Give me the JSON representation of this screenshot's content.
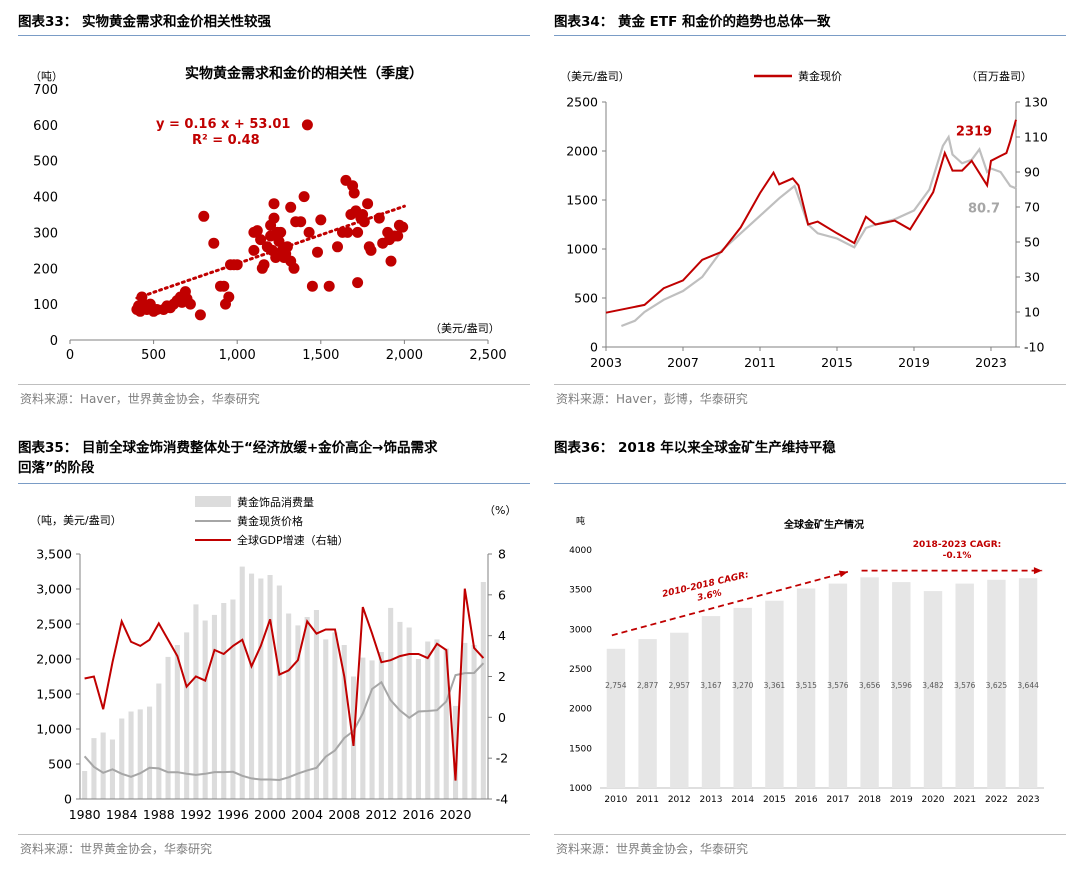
{
  "colors": {
    "red": "#c00000",
    "grey": "#bfbfbf",
    "bar": "#dcdcdc",
    "bar2": "#e6e6e6",
    "rule": "#7a9cc6"
  },
  "chart_data": [
    {
      "type": "scatter",
      "panel_title": "图表33： 实物黄金需求和金价相关性较强",
      "title": "实物黄金需求和金价的相关性（季度）",
      "ylabel": "（吨）",
      "xlabel": "（美元/盎司）",
      "equation": "y = 0.16 x + 53.01",
      "r2": "R² = 0.48",
      "xlim": [
        0,
        2500
      ],
      "ylim": [
        0,
        700
      ],
      "xticks": [
        0,
        500,
        1000,
        1500,
        2000,
        2500
      ],
      "xtick_labels": [
        "0",
        "500",
        "1,000",
        "1,500",
        "2,000",
        "2,500"
      ],
      "yticks": [
        0,
        100,
        200,
        300,
        400,
        500,
        600,
        700
      ],
      "trend": {
        "slope": 0.16,
        "intercept": 53.01,
        "x_from": 400,
        "x_to": 2000
      },
      "points": [
        [
          400,
          85
        ],
        [
          410,
          95
        ],
        [
          420,
          80
        ],
        [
          430,
          120
        ],
        [
          440,
          100
        ],
        [
          450,
          90
        ],
        [
          460,
          85
        ],
        [
          480,
          100
        ],
        [
          500,
          80
        ],
        [
          520,
          85
        ],
        [
          560,
          85
        ],
        [
          580,
          95
        ],
        [
          600,
          90
        ],
        [
          620,
          100
        ],
        [
          640,
          110
        ],
        [
          660,
          120
        ],
        [
          670,
          105
        ],
        [
          690,
          135
        ],
        [
          700,
          115
        ],
        [
          720,
          100
        ],
        [
          780,
          70
        ],
        [
          800,
          345
        ],
        [
          860,
          270
        ],
        [
          900,
          150
        ],
        [
          920,
          150
        ],
        [
          930,
          100
        ],
        [
          950,
          120
        ],
        [
          960,
          210
        ],
        [
          980,
          210
        ],
        [
          1000,
          210
        ],
        [
          1100,
          250
        ],
        [
          1100,
          300
        ],
        [
          1120,
          305
        ],
        [
          1140,
          280
        ],
        [
          1150,
          200
        ],
        [
          1160,
          210
        ],
        [
          1180,
          260
        ],
        [
          1200,
          320
        ],
        [
          1200,
          290
        ],
        [
          1210,
          250
        ],
        [
          1220,
          340
        ],
        [
          1220,
          380
        ],
        [
          1230,
          230
        ],
        [
          1240,
          300
        ],
        [
          1250,
          275
        ],
        [
          1260,
          300
        ],
        [
          1270,
          250
        ],
        [
          1280,
          230
        ],
        [
          1290,
          240
        ],
        [
          1300,
          260
        ],
        [
          1320,
          220
        ],
        [
          1320,
          370
        ],
        [
          1340,
          200
        ],
        [
          1350,
          330
        ],
        [
          1380,
          330
        ],
        [
          1400,
          400
        ],
        [
          1420,
          600
        ],
        [
          1430,
          300
        ],
        [
          1450,
          150
        ],
        [
          1480,
          245
        ],
        [
          1500,
          335
        ],
        [
          1550,
          150
        ],
        [
          1600,
          260
        ],
        [
          1630,
          300
        ],
        [
          1650,
          445
        ],
        [
          1660,
          300
        ],
        [
          1680,
          350
        ],
        [
          1690,
          430
        ],
        [
          1700,
          410
        ],
        [
          1710,
          360
        ],
        [
          1720,
          160
        ],
        [
          1720,
          300
        ],
        [
          1740,
          340
        ],
        [
          1750,
          350
        ],
        [
          1760,
          330
        ],
        [
          1780,
          380
        ],
        [
          1790,
          260
        ],
        [
          1800,
          250
        ],
        [
          1850,
          340
        ],
        [
          1870,
          270
        ],
        [
          1900,
          300
        ],
        [
          1910,
          280
        ],
        [
          1920,
          220
        ],
        [
          1940,
          290
        ],
        [
          1960,
          290
        ],
        [
          1970,
          320
        ],
        [
          1990,
          315
        ]
      ],
      "source": "资料来源：Haver，世界黄金协会，华泰研究"
    },
    {
      "type": "line",
      "panel_title": "图表34： 黄金 ETF 和金价的趋势也总体一致",
      "left_unit": "（美元/盎司）",
      "right_unit": "（百万盎司）",
      "legend": "黄金现价",
      "xlim": [
        2003,
        2024.3
      ],
      "xticks": [
        2003,
        2007,
        2011,
        2015,
        2019,
        2023
      ],
      "ylim_left": [
        0,
        2500
      ],
      "yticks_left": [
        0,
        500,
        1000,
        1500,
        2000,
        2500
      ],
      "ylim_right": [
        -10,
        130
      ],
      "yticks_right": [
        -10,
        10,
        30,
        50,
        70,
        90,
        110,
        130
      ],
      "label_gold": "2319",
      "label_etf": "80.7",
      "gold": [
        [
          2003,
          350
        ],
        [
          2004,
          390
        ],
        [
          2005,
          430
        ],
        [
          2006,
          600
        ],
        [
          2007,
          680
        ],
        [
          2008,
          890
        ],
        [
          2009,
          970
        ],
        [
          2010,
          1220
        ],
        [
          2011,
          1570
        ],
        [
          2011.7,
          1780
        ],
        [
          2012,
          1660
        ],
        [
          2012.7,
          1720
        ],
        [
          2013,
          1650
        ],
        [
          2013.5,
          1250
        ],
        [
          2014,
          1280
        ],
        [
          2015,
          1160
        ],
        [
          2015.9,
          1060
        ],
        [
          2016.5,
          1330
        ],
        [
          2017,
          1250
        ],
        [
          2018,
          1290
        ],
        [
          2018.8,
          1200
        ],
        [
          2019.5,
          1420
        ],
        [
          2020,
          1580
        ],
        [
          2020.6,
          1980
        ],
        [
          2021,
          1800
        ],
        [
          2021.5,
          1800
        ],
        [
          2022,
          1900
        ],
        [
          2022.8,
          1650
        ],
        [
          2023,
          1900
        ],
        [
          2023.5,
          1950
        ],
        [
          2023.8,
          1980
        ],
        [
          2024,
          2100
        ],
        [
          2024.3,
          2319
        ]
      ],
      "etf": [
        [
          2003.8,
          2
        ],
        [
          2004.5,
          5
        ],
        [
          2005,
          10
        ],
        [
          2006,
          17
        ],
        [
          2007,
          22
        ],
        [
          2008,
          30
        ],
        [
          2009,
          45
        ],
        [
          2010,
          55
        ],
        [
          2011,
          65
        ],
        [
          2012,
          75
        ],
        [
          2012.8,
          82
        ],
        [
          2013.5,
          60
        ],
        [
          2014,
          55
        ],
        [
          2015,
          52
        ],
        [
          2015.9,
          47
        ],
        [
          2016.5,
          58
        ],
        [
          2017,
          60
        ],
        [
          2018,
          63
        ],
        [
          2019,
          68
        ],
        [
          2019.8,
          80
        ],
        [
          2020.5,
          105
        ],
        [
          2020.8,
          110
        ],
        [
          2021,
          100
        ],
        [
          2021.5,
          95
        ],
        [
          2022,
          97
        ],
        [
          2022.4,
          103
        ],
        [
          2022.8,
          90
        ],
        [
          2023,
          92
        ],
        [
          2023.5,
          90
        ],
        [
          2024,
          82
        ],
        [
          2024.3,
          80.7
        ]
      ],
      "source": "资料来源：Haver，彭博，华泰研究"
    },
    {
      "type": "bar",
      "panel_title_line1": "图表35： 目前全球金饰消费整体处于“经济放缓+金价高企→饰品需求",
      "panel_title_line2": "回落”的阶段",
      "left_unit": "（吨，美元/盎司）",
      "right_unit": "（%）",
      "legend": [
        "黄金饰品消费量",
        "黄金现货价格",
        "全球GDP增速（右轴）"
      ],
      "xticks": [
        1980,
        1984,
        1988,
        1992,
        1996,
        2000,
        2004,
        2008,
        2012,
        2016,
        2020
      ],
      "ylim_left": [
        0,
        3500
      ],
      "yticks_left": [
        0,
        500,
        1000,
        1500,
        2000,
        2500,
        3000,
        3500
      ],
      "ytick_labels_left": [
        "0",
        "500",
        "1,000",
        "1,500",
        "2,000",
        "2,500",
        "3,000",
        "3,500"
      ],
      "ylim_right": [
        -4,
        8
      ],
      "yticks_right": [
        -4,
        -2,
        0,
        2,
        4,
        6,
        8
      ],
      "years": [
        1980,
        1981,
        1982,
        1983,
        1984,
        1985,
        1986,
        1987,
        1988,
        1989,
        1990,
        1991,
        1992,
        1993,
        1994,
        1995,
        1996,
        1997,
        1998,
        1999,
        2000,
        2001,
        2002,
        2003,
        2004,
        2005,
        2006,
        2007,
        2008,
        2009,
        2010,
        2011,
        2012,
        2013,
        2014,
        2015,
        2016,
        2017,
        2018,
        2019,
        2020,
        2021,
        2022,
        2023
      ],
      "jewelry": [
        400,
        870,
        950,
        850,
        1150,
        1250,
        1280,
        1320,
        1650,
        2030,
        2200,
        2380,
        2780,
        2550,
        2630,
        2800,
        2850,
        3320,
        3220,
        3150,
        3200,
        3050,
        2650,
        2480,
        2600,
        2700,
        2280,
        2380,
        2200,
        1750,
        2020,
        1980,
        2100,
        2730,
        2530,
        2450,
        2000,
        2250,
        2280,
        2150,
        1330,
        2230,
        2200,
        3100
      ],
      "price": [
        610,
        460,
        375,
        425,
        360,
        317,
        368,
        446,
        437,
        381,
        383,
        362,
        344,
        360,
        384,
        384,
        388,
        331,
        294,
        279,
        279,
        271,
        310,
        363,
        409,
        445,
        604,
        695,
        872,
        972,
        1225,
        1572,
        1669,
        1411,
        1266,
        1160,
        1250,
        1257,
        1268,
        1393,
        1770,
        1799,
        1800,
        1940
      ],
      "gdp": [
        1.9,
        2,
        0.4,
        2.7,
        4.7,
        3.7,
        3.5,
        3.8,
        4.6,
        3.8,
        3,
        1.5,
        2,
        1.8,
        3.3,
        3.1,
        3.5,
        3.8,
        2.5,
        3.5,
        4.8,
        2.1,
        2.3,
        2.8,
        4.7,
        4.1,
        4.3,
        4.3,
        2,
        -1.4,
        5.4,
        4.1,
        2.7,
        2.8,
        3,
        3.1,
        3.1,
        2.9,
        3.6,
        3.3,
        -3.1,
        6.3,
        3.4,
        2.9
      ],
      "source": "资料来源：世界黄金协会，华泰研究"
    },
    {
      "type": "bar",
      "panel_title": "图表36： 2018 年以来全球金矿生产维持平稳",
      "unit": "吨",
      "title": "全球金矿生产情况",
      "categories": [
        "2010",
        "2011",
        "2012",
        "2013",
        "2014",
        "2015",
        "2016",
        "2017",
        "2018",
        "2019",
        "2020",
        "2021",
        "2022",
        "2023"
      ],
      "values": [
        2754,
        2877,
        2957,
        3167,
        3270,
        3361,
        3515,
        3576,
        3656,
        3596,
        3482,
        3576,
        3625,
        3644
      ],
      "value_labels": [
        "2,754",
        "2,877",
        "2,957",
        "3,167",
        "3,270",
        "3,361",
        "3,515",
        "3,576",
        "3,656",
        "3,596",
        "3,482",
        "3,576",
        "3,625",
        "3,644"
      ],
      "ylim": [
        1000,
        4000
      ],
      "yticks": [
        1000,
        1500,
        2000,
        2500,
        3000,
        3500,
        4000
      ],
      "cagr1_l1": "2010-2018 CAGR:",
      "cagr1_l2": "3.6%",
      "cagr2_l1": "2018-2023 CAGR:",
      "cagr2_l2": "-0.1%",
      "source": "资料来源：世界黄金协会，华泰研究"
    }
  ]
}
